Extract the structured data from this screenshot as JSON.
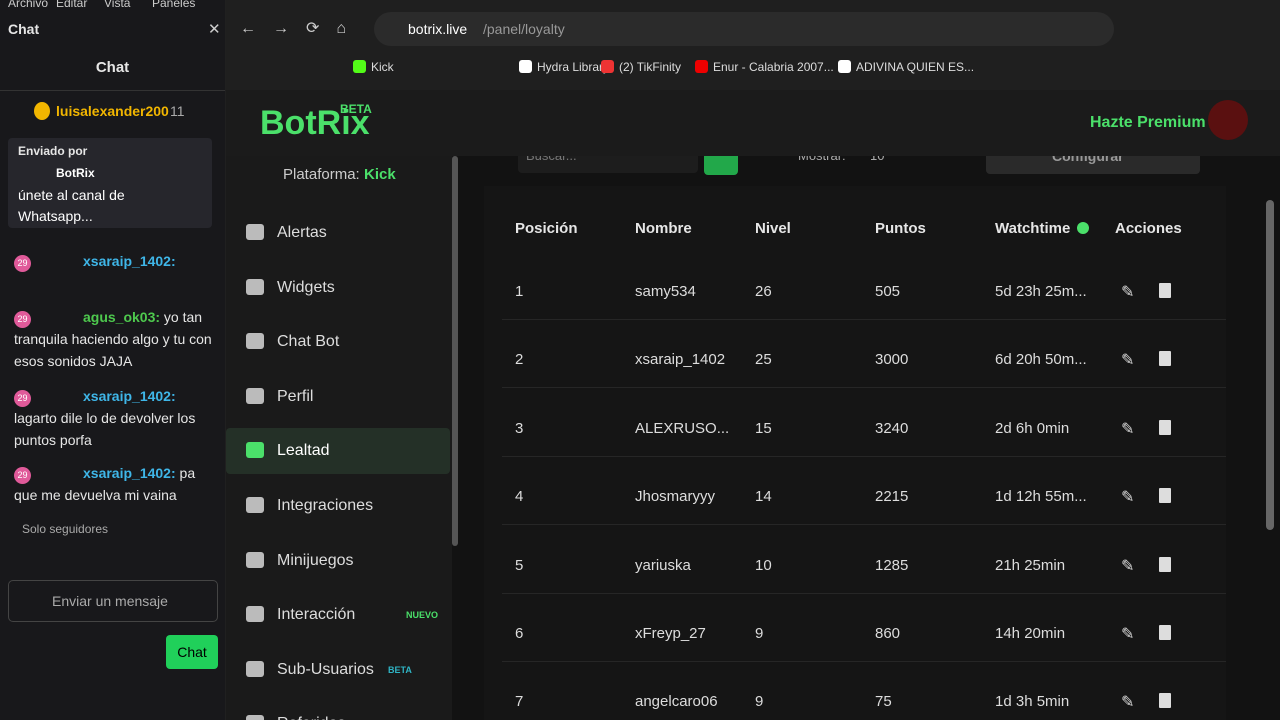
{
  "menubar": [
    "Archivo",
    "Editar",
    "Vista",
    "Paneles"
  ],
  "chat": {
    "window_title": "Chat",
    "header": "Chat",
    "top_user": "luisalexander200",
    "top_count": "11",
    "pinned": {
      "label": "Enviado por",
      "author": "BotRix",
      "text": "únete al canal de Whatsapp..."
    },
    "messages": [
      {
        "badge": "29",
        "user": "xsaraip_1402:",
        "text": ""
      },
      {
        "badge": "29",
        "user": "agus_ok03:",
        "text": "yo tan tranquila haciendo algo y tu con esos sonidos JAJA"
      },
      {
        "badge": "29",
        "user": "xsaraip_1402:",
        "text": "lagarto dile lo de devolver los puntos porfa"
      },
      {
        "badge": "29",
        "user": "xsaraip_1402:",
        "text": "pa que me devuelva mi vaina"
      }
    ],
    "followers": "Solo seguidores",
    "placeholder": "Enviar un mensaje",
    "send": "Chat"
  },
  "browser": {
    "host": "botrix.live",
    "path": "/panel/loyalty",
    "bookmarks": [
      "Kick",
      "Hydra Library",
      "(2) TikFinity",
      "Enur - Calabria 2007...",
      "ADIVINA QUIEN ES..."
    ]
  },
  "app": {
    "logo": "BotRix",
    "beta": "BETA",
    "premium": "Hazte Premium",
    "platform_label": "Plataforma:",
    "platform": "Kick",
    "nav": [
      {
        "label": "Alertas"
      },
      {
        "label": "Widgets"
      },
      {
        "label": "Chat Bot"
      },
      {
        "label": "Perfil"
      },
      {
        "label": "Lealtad"
      },
      {
        "label": "Integraciones"
      },
      {
        "label": "Minijuegos"
      },
      {
        "label": "Interacción",
        "badge": "NUEVO"
      },
      {
        "label": "Sub-Usuarios",
        "badge": "BETA"
      },
      {
        "label": "Referidos"
      }
    ],
    "search": "Buscar...",
    "show_label": "Mostrar:",
    "show_value": "10",
    "configure": "Configurar"
  },
  "table": {
    "headers": [
      "Posición",
      "Nombre",
      "Nivel",
      "Puntos",
      "Watchtime",
      "Acciones"
    ],
    "rows": [
      [
        "1",
        "samy534",
        "26",
        "505",
        "5d 23h 25m..."
      ],
      [
        "2",
        "xsaraip_1402",
        "25",
        "3000",
        "6d 20h 50m..."
      ],
      [
        "3",
        "ALEXRUSO...",
        "15",
        "3240",
        "2d 6h 0min"
      ],
      [
        "4",
        "Jhosmaryyy",
        "14",
        "2215",
        "1d 12h 55m..."
      ],
      [
        "5",
        "yariuska",
        "10",
        "1285",
        "21h 25min"
      ],
      [
        "6",
        "xFreyp_27",
        "9",
        "860",
        "14h 20min"
      ],
      [
        "7",
        "angelcaro06",
        "9",
        "75",
        "1d 3h 5min"
      ]
    ]
  }
}
